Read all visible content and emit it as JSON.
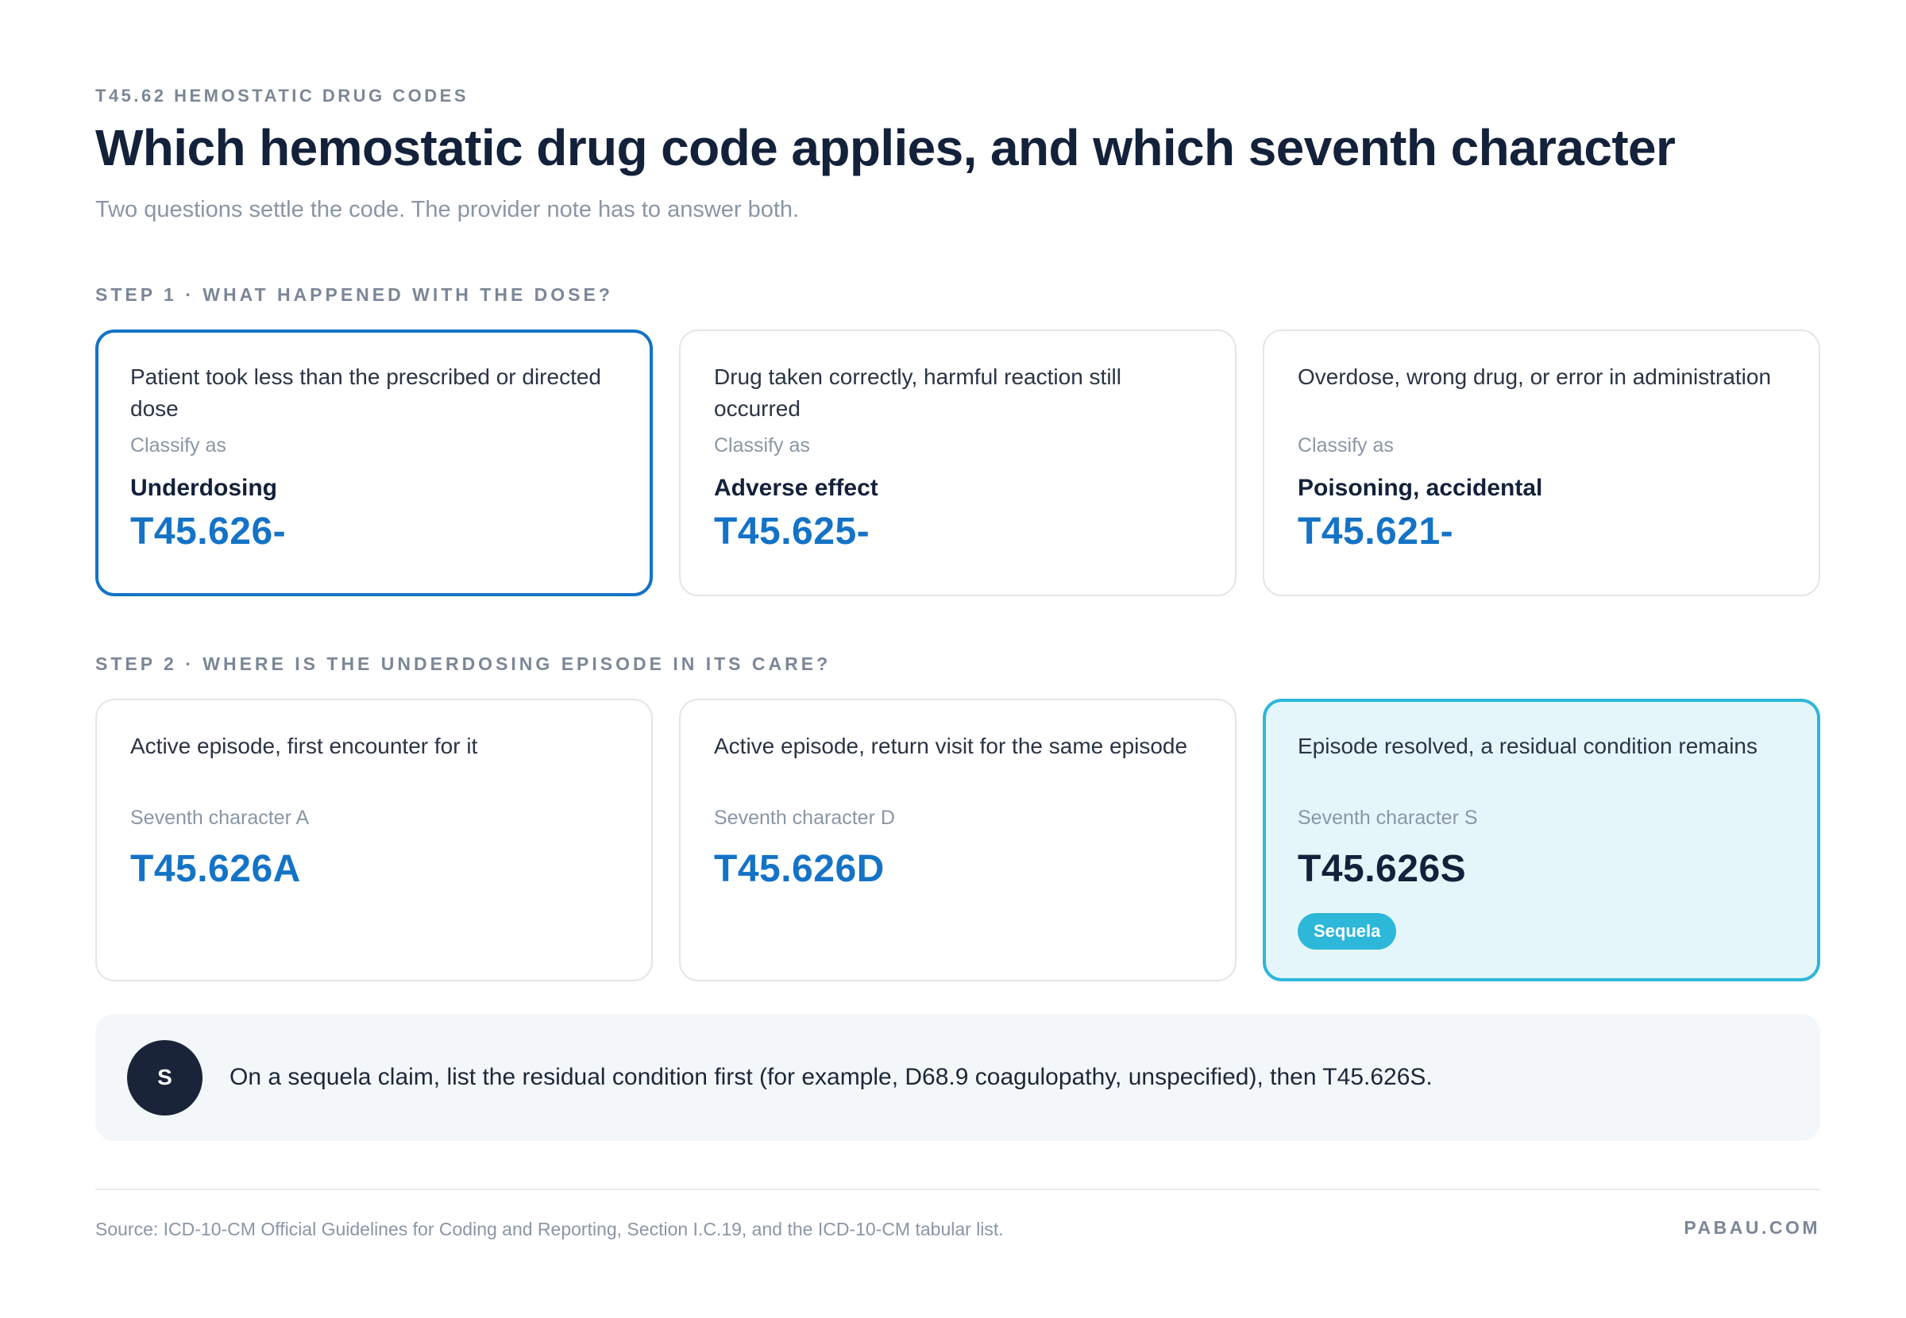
{
  "header": {
    "eyebrow": "T45.62 HEMOSTATIC DRUG CODES",
    "title": "Which hemostatic drug code applies, and which seventh character",
    "subtitle": "Two questions settle the code. The provider note has to answer both."
  },
  "step1": {
    "label": "STEP 1 · WHAT HAPPENED WITH THE DOSE?",
    "cards": [
      {
        "description": "Patient took less than the prescribed or directed dose",
        "sub_label": "Classify as",
        "classification": "Underdosing",
        "code": "T45.626-",
        "selected": true
      },
      {
        "description": "Drug taken correctly, harmful reaction still occurred",
        "sub_label": "Classify as",
        "classification": "Adverse effect",
        "code": "T45.625-",
        "selected": false
      },
      {
        "description": "Overdose, wrong drug, or error in administration",
        "sub_label": "Classify as",
        "classification": "Poisoning, accidental",
        "code": "T45.621-",
        "selected": false
      }
    ]
  },
  "step2": {
    "label": "STEP 2 · WHERE IS THE UNDERDOSING EPISODE IN ITS CARE?",
    "cards": [
      {
        "description": "Active episode, first encounter for it",
        "sub_label": "Seventh character A",
        "code": "T45.626A",
        "highlighted": false
      },
      {
        "description": "Active episode, return visit for the same episode",
        "sub_label": "Seventh character D",
        "code": "T45.626D",
        "highlighted": false
      },
      {
        "description": "Episode resolved, a residual condition remains",
        "sub_label": "Seventh character S",
        "code": "T45.626S",
        "badge": "Sequela",
        "highlighted": true
      }
    ]
  },
  "note": {
    "avatar_letter": "S",
    "text": "On a sequela claim, list the residual condition first (for example, D68.9 coagulopathy, unspecified), then T45.626S."
  },
  "footer": {
    "source": "Source: ICD-10-CM Official Guidelines for Coding and Reporting, Section I.C.19, and the ICD-10-CM tabular list.",
    "brand": "PABAU.COM"
  },
  "colors": {
    "accent_blue": "#1473c6",
    "accent_cyan": "#2db7d8",
    "highlight_bg": "#e5f6fb",
    "heading": "#13213a",
    "muted": "#8a96a6"
  }
}
